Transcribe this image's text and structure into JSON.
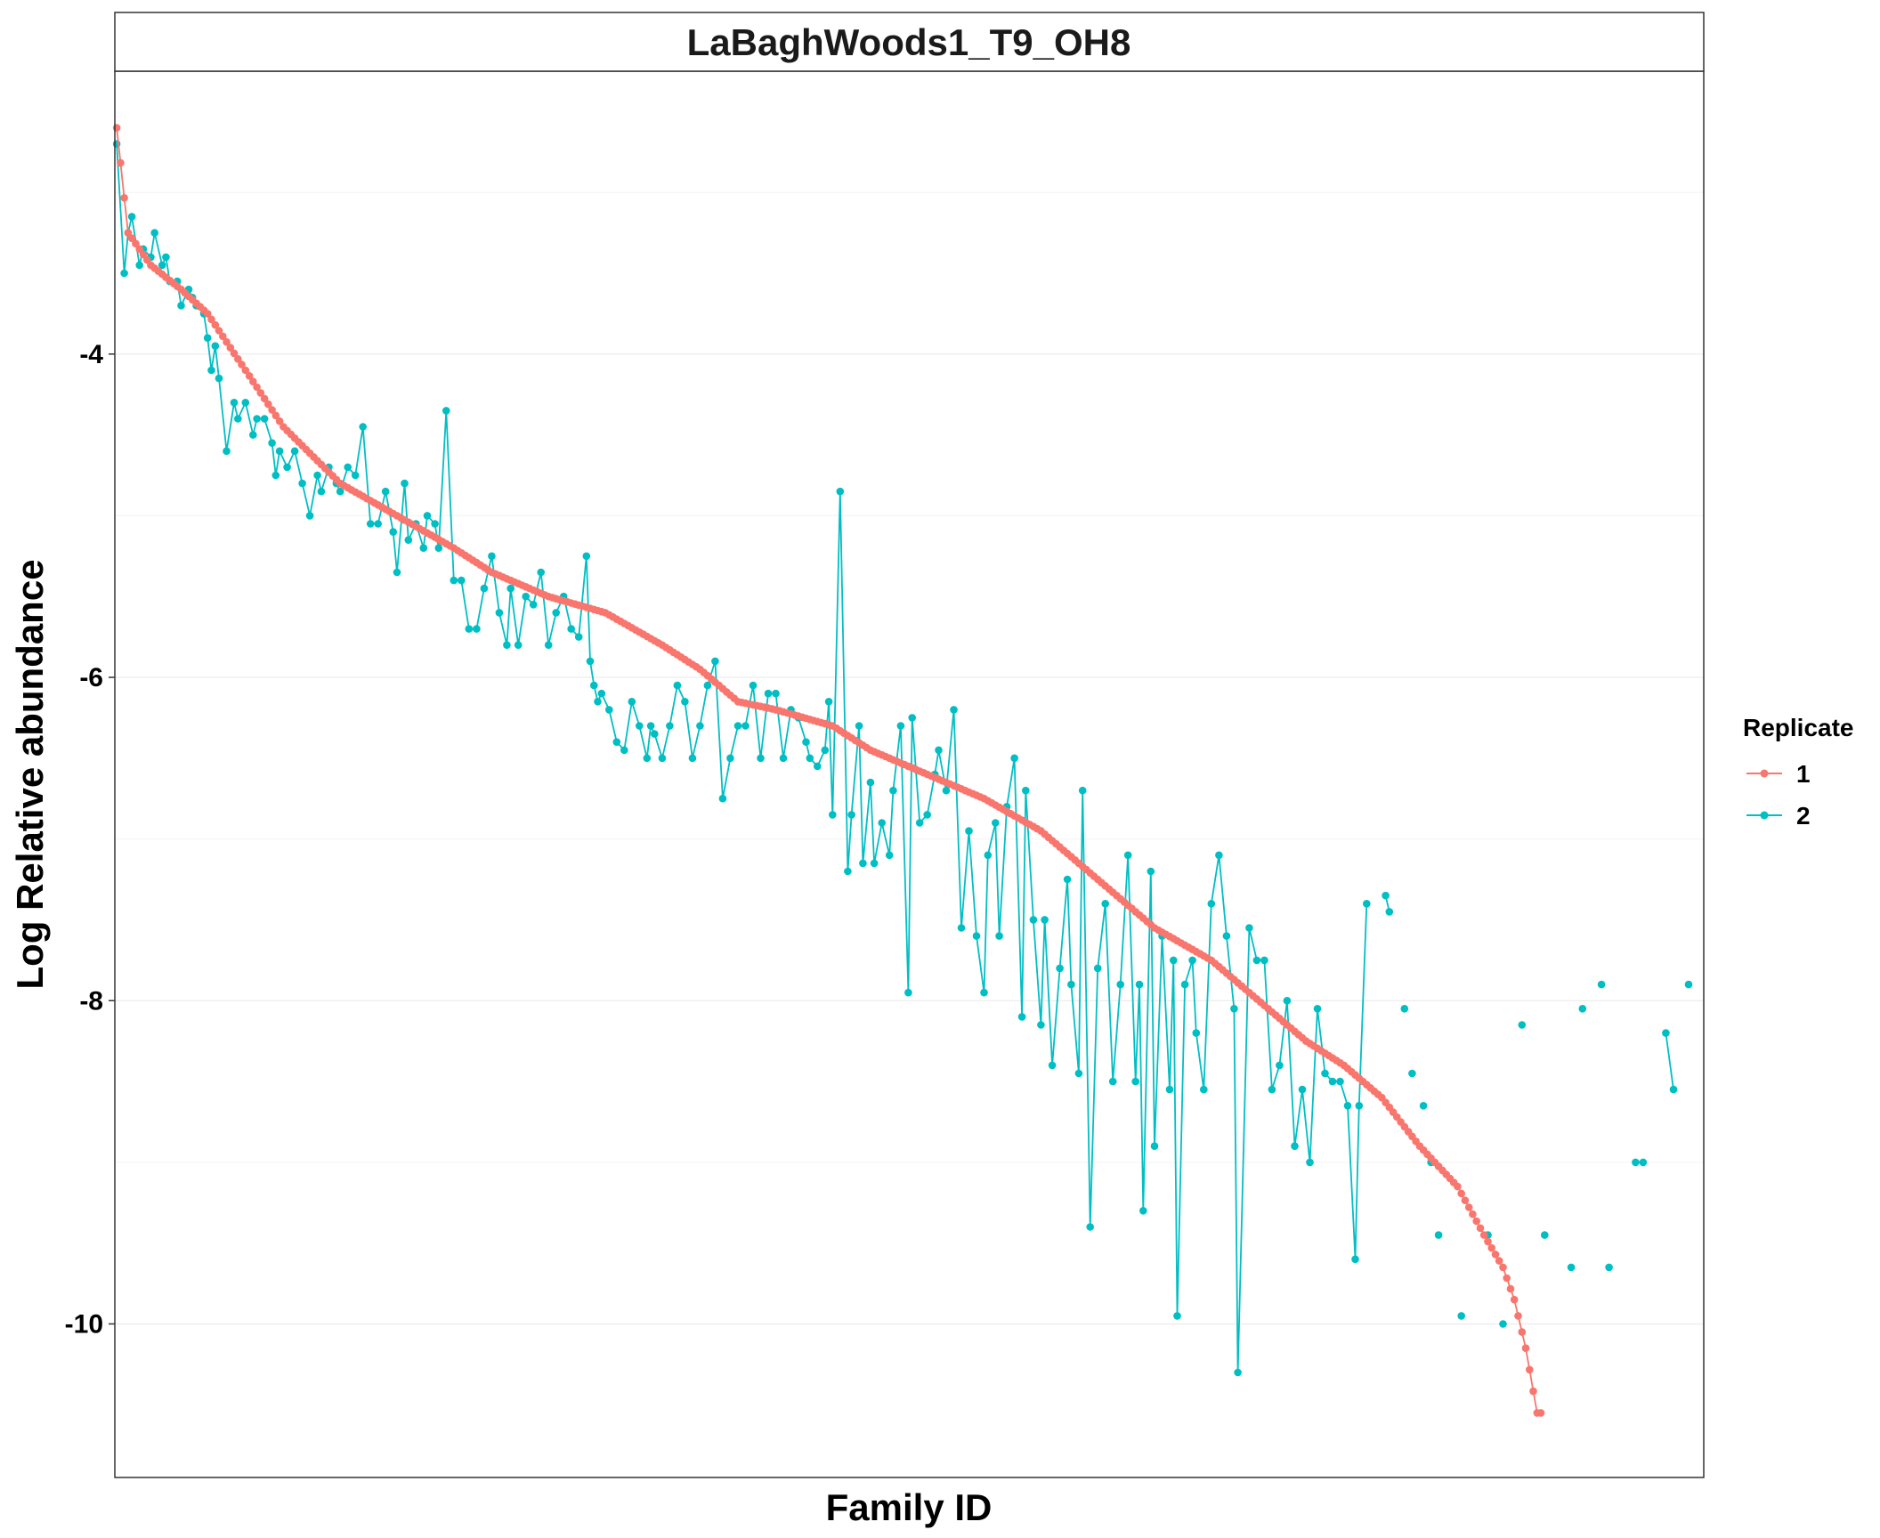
{
  "chart_data": {
    "type": "line",
    "title": "LaBaghWoods1_T9_OH8",
    "xlabel": "Family ID",
    "ylabel": "Log Relative abundance",
    "xlim": [
      0.5,
      420
    ],
    "ylim": [
      -10.95,
      -2.25
    ],
    "y_ticks": [
      -4,
      -6,
      -8,
      -10
    ],
    "y_tick_labels": [
      "-4",
      "-6",
      "-8",
      "-10"
    ],
    "grid": true,
    "legend": {
      "title": "Replicate",
      "placement": "right",
      "entries": [
        {
          "label": "1",
          "color": "#F8766D"
        },
        {
          "label": "2",
          "color": "#00BFC4"
        }
      ]
    },
    "series": [
      {
        "name": "1",
        "color": "#F8766D",
        "anchors": [
          [
            1,
            -2.6
          ],
          [
            4,
            -3.25
          ],
          [
            10,
            -3.45
          ],
          [
            18,
            -3.6
          ],
          [
            25,
            -3.75
          ],
          [
            35,
            -4.1
          ],
          [
            45,
            -4.45
          ],
          [
            60,
            -4.8
          ],
          [
            75,
            -5.0
          ],
          [
            90,
            -5.2
          ],
          [
            100,
            -5.35
          ],
          [
            115,
            -5.5
          ],
          [
            130,
            -5.6
          ],
          [
            145,
            -5.8
          ],
          [
            155,
            -5.95
          ],
          [
            165,
            -6.15
          ],
          [
            175,
            -6.2
          ],
          [
            190,
            -6.3
          ],
          [
            200,
            -6.45
          ],
          [
            215,
            -6.6
          ],
          [
            230,
            -6.75
          ],
          [
            245,
            -6.95
          ],
          [
            260,
            -7.25
          ],
          [
            275,
            -7.55
          ],
          [
            290,
            -7.75
          ],
          [
            305,
            -8.05
          ],
          [
            315,
            -8.25
          ],
          [
            325,
            -8.4
          ],
          [
            335,
            -8.6
          ],
          [
            345,
            -8.9
          ],
          [
            355,
            -9.15
          ],
          [
            362,
            -9.45
          ],
          [
            367,
            -9.65
          ],
          [
            370,
            -9.85
          ],
          [
            373,
            -10.15
          ],
          [
            376,
            -10.55
          ],
          [
            377,
            -10.55
          ]
        ]
      },
      {
        "name": "2",
        "color": "#00BFC4",
        "points": [
          [
            1,
            -2.7
          ],
          [
            3,
            -3.5
          ],
          [
            4,
            -3.25
          ],
          [
            5,
            -3.15
          ],
          [
            7,
            -3.45
          ],
          [
            8,
            -3.35
          ],
          [
            10,
            -3.4
          ],
          [
            11,
            -3.25
          ],
          [
            13,
            -3.45
          ],
          [
            14,
            -3.4
          ],
          [
            15,
            -3.55
          ],
          [
            17,
            -3.55
          ],
          [
            18,
            -3.7
          ],
          [
            20,
            -3.6
          ],
          [
            21,
            -3.65
          ],
          [
            22,
            -3.7
          ],
          [
            24,
            -3.75
          ],
          [
            25,
            -3.9
          ],
          [
            26,
            -4.1
          ],
          [
            27,
            -3.95
          ],
          [
            28,
            -4.15
          ],
          [
            30,
            -4.6
          ],
          [
            32,
            -4.3
          ],
          [
            33,
            -4.4
          ],
          [
            35,
            -4.3
          ],
          [
            37,
            -4.5
          ],
          [
            38,
            -4.4
          ],
          [
            40,
            -4.4
          ],
          [
            42,
            -4.55
          ],
          [
            43,
            -4.75
          ],
          [
            44,
            -4.6
          ],
          [
            46,
            -4.7
          ],
          [
            48,
            -4.6
          ],
          [
            50,
            -4.8
          ],
          [
            52,
            -5.0
          ],
          [
            54,
            -4.75
          ],
          [
            55,
            -4.85
          ],
          [
            57,
            -4.7
          ],
          [
            59,
            -4.8
          ],
          [
            60,
            -4.85
          ],
          [
            62,
            -4.7
          ],
          [
            64,
            -4.75
          ],
          [
            66,
            -4.45
          ],
          [
            68,
            -5.05
          ],
          [
            70,
            -5.05
          ],
          [
            72,
            -4.85
          ],
          [
            74,
            -5.1
          ],
          [
            75,
            -5.35
          ],
          [
            77,
            -4.8
          ],
          [
            78,
            -5.15
          ],
          [
            80,
            -5.05
          ],
          [
            82,
            -5.2
          ],
          [
            83,
            -5.0
          ],
          [
            85,
            -5.05
          ],
          [
            86,
            -5.2
          ],
          [
            88,
            -4.35
          ],
          [
            90,
            -5.4
          ],
          [
            92,
            -5.4
          ],
          [
            94,
            -5.7
          ],
          [
            96,
            -5.7
          ],
          [
            98,
            -5.45
          ],
          [
            100,
            -5.25
          ],
          [
            102,
            -5.6
          ],
          [
            104,
            -5.8
          ],
          [
            105,
            -5.45
          ],
          [
            107,
            -5.8
          ],
          [
            109,
            -5.5
          ],
          [
            111,
            -5.55
          ],
          [
            113,
            -5.35
          ],
          [
            115,
            -5.8
          ],
          [
            117,
            -5.6
          ],
          [
            119,
            -5.5
          ],
          [
            121,
            -5.7
          ],
          [
            123,
            -5.75
          ],
          [
            125,
            -5.25
          ],
          [
            126,
            -5.9
          ],
          [
            127,
            -6.05
          ],
          [
            128,
            -6.15
          ],
          [
            129,
            -6.1
          ],
          [
            131,
            -6.2
          ],
          [
            133,
            -6.4
          ],
          [
            135,
            -6.45
          ],
          [
            137,
            -6.15
          ],
          [
            139,
            -6.3
          ],
          [
            141,
            -6.5
          ],
          [
            142,
            -6.3
          ],
          [
            143,
            -6.35
          ],
          [
            145,
            -6.5
          ],
          [
            147,
            -6.3
          ],
          [
            149,
            -6.05
          ],
          [
            151,
            -6.15
          ],
          [
            153,
            -6.5
          ],
          [
            155,
            -6.3
          ],
          [
            157,
            -6.05
          ],
          [
            159,
            -5.9
          ],
          [
            161,
            -6.75
          ],
          [
            163,
            -6.5
          ],
          [
            165,
            -6.3
          ],
          [
            167,
            -6.3
          ],
          [
            169,
            -6.05
          ],
          [
            171,
            -6.5
          ],
          [
            173,
            -6.1
          ],
          [
            175,
            -6.1
          ],
          [
            177,
            -6.5
          ],
          [
            179,
            -6.2
          ],
          [
            181,
            -6.25
          ],
          [
            183,
            -6.4
          ],
          [
            184,
            -6.5
          ],
          [
            186,
            -6.55
          ],
          [
            188,
            -6.45
          ],
          [
            189,
            -6.15
          ],
          [
            190,
            -6.85
          ],
          [
            192,
            -4.85
          ],
          [
            194,
            -7.2
          ],
          [
            195,
            -6.85
          ],
          [
            197,
            -6.3
          ],
          [
            198,
            -7.15
          ],
          [
            200,
            -6.65
          ],
          [
            201,
            -7.15
          ],
          [
            203,
            -6.9
          ],
          [
            205,
            -7.1
          ],
          [
            206,
            -6.7
          ],
          [
            208,
            -6.3
          ],
          [
            210,
            -7.95
          ],
          [
            211,
            -6.25
          ],
          [
            213,
            -6.9
          ],
          [
            215,
            -6.85
          ],
          [
            217,
            -6.6
          ],
          [
            218,
            -6.45
          ],
          [
            220,
            -6.7
          ],
          [
            222,
            -6.2
          ],
          [
            224,
            -7.55
          ],
          [
            226,
            -6.95
          ],
          [
            228,
            -7.6
          ],
          [
            230,
            -7.95
          ],
          [
            231,
            -7.1
          ],
          [
            233,
            -6.9
          ],
          [
            234,
            -7.6
          ],
          [
            236,
            -6.8
          ],
          [
            238,
            -6.5
          ],
          [
            240,
            -8.1
          ],
          [
            241,
            -6.7
          ],
          [
            243,
            -7.5
          ],
          [
            245,
            -8.15
          ],
          [
            246,
            -7.5
          ],
          [
            248,
            -8.4
          ],
          [
            250,
            -7.8
          ],
          [
            252,
            -7.25
          ],
          [
            253,
            -7.9
          ],
          [
            255,
            -8.45
          ],
          [
            256,
            -6.7
          ],
          [
            258,
            -9.4
          ],
          [
            260,
            -7.8
          ],
          [
            262,
            -7.4
          ],
          [
            264,
            -8.5
          ],
          [
            266,
            -7.9
          ],
          [
            268,
            -7.1
          ],
          [
            270,
            -8.5
          ],
          [
            271,
            -7.9
          ],
          [
            272,
            -9.3
          ],
          [
            274,
            -7.2
          ],
          [
            275,
            -8.9
          ],
          [
            277,
            -7.6
          ],
          [
            279,
            -8.55
          ],
          [
            280,
            -7.75
          ],
          [
            281,
            -9.95
          ],
          [
            283,
            -7.9
          ],
          [
            285,
            -7.75
          ],
          [
            286,
            -8.2
          ],
          [
            288,
            -8.55
          ],
          [
            290,
            -7.4
          ],
          [
            292,
            -7.1
          ],
          [
            294,
            -7.6
          ],
          [
            296,
            -8.05
          ],
          [
            297,
            -10.3
          ],
          [
            300,
            -7.55
          ],
          [
            302,
            -7.75
          ],
          [
            304,
            -7.75
          ],
          [
            306,
            -8.55
          ],
          [
            308,
            -8.4
          ],
          [
            310,
            -8.0
          ],
          [
            312,
            -8.9
          ],
          [
            314,
            -8.55
          ],
          [
            316,
            -9.0
          ],
          [
            318,
            -8.05
          ],
          [
            320,
            -8.45
          ],
          [
            322,
            -8.5
          ],
          [
            324,
            -8.5
          ],
          [
            326,
            -8.65
          ],
          [
            328,
            -9.6
          ],
          [
            329,
            -8.65
          ],
          [
            331,
            -7.4
          ],
          null,
          [
            336,
            -7.35
          ],
          [
            337,
            -7.45
          ],
          null,
          [
            341,
            -8.05
          ],
          null,
          [
            343,
            -8.45
          ],
          null,
          [
            346,
            -8.65
          ],
          null,
          [
            348,
            -9.0
          ],
          null,
          [
            350,
            -9.45
          ],
          null,
          [
            356,
            -9.95
          ],
          null,
          [
            363,
            -9.45
          ],
          null,
          [
            367,
            -10.0
          ],
          null,
          [
            372,
            -8.15
          ],
          null,
          [
            378,
            -9.45
          ],
          null,
          [
            385,
            -9.65
          ],
          null,
          [
            388,
            -8.05
          ],
          null,
          [
            393,
            -7.9
          ],
          null,
          [
            395,
            -9.65
          ],
          null,
          [
            402,
            -9.0
          ],
          [
            404,
            -9.0
          ],
          null,
          [
            410,
            -8.2
          ],
          [
            412,
            -8.55
          ],
          null,
          [
            416,
            -7.9
          ],
          null
        ]
      }
    ]
  }
}
